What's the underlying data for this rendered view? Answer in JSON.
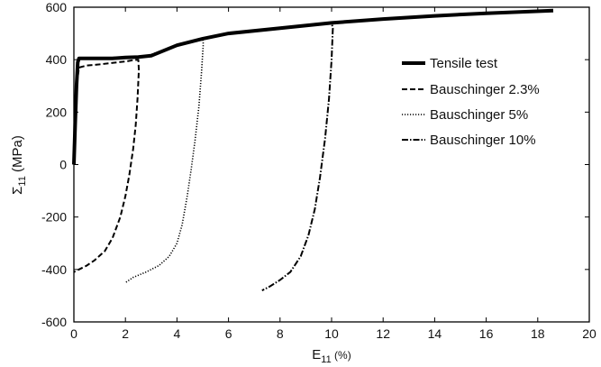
{
  "chart_data": {
    "type": "line",
    "title": "",
    "xlabel": {
      "main": "E",
      "sub": "11",
      "unit": " (%)"
    },
    "ylabel": {
      "main": "Σ",
      "sub": "11",
      "unit": " (MPa)"
    },
    "xlim": [
      0,
      20
    ],
    "ylim": [
      -600,
      600
    ],
    "xticks": [
      0,
      2,
      4,
      6,
      8,
      10,
      12,
      14,
      16,
      18,
      20
    ],
    "yticks": [
      -600,
      -400,
      -200,
      0,
      200,
      400,
      600
    ],
    "grid": false,
    "legend_position": "right",
    "series": [
      {
        "name": "Tensile test",
        "style": "solid",
        "color": "#000000",
        "x": [
          0,
          0.05,
          0.1,
          0.15,
          0.2,
          0.5,
          1,
          1.5,
          2,
          2.5,
          3,
          4,
          5,
          6,
          8,
          10,
          12,
          14,
          16,
          18.6
        ],
        "y": [
          0,
          150,
          300,
          390,
          405,
          405,
          405,
          405,
          408,
          410,
          415,
          455,
          480,
          500,
          520,
          540,
          555,
          567,
          577,
          587
        ]
      },
      {
        "name": "Bauschinger 2.3%",
        "style": "dashed",
        "color": "#000000",
        "x": [
          0,
          0.1,
          0.2,
          0.5,
          1,
          1.5,
          2,
          2.3,
          2.5,
          2.52,
          2.47,
          2.4,
          2.3,
          2.15,
          2.0,
          1.8,
          1.5,
          1.2,
          0.8,
          0.5,
          0.2,
          0.0
        ],
        "y": [
          0,
          300,
          370,
          378,
          382,
          388,
          393,
          398,
          400,
          360,
          250,
          150,
          60,
          -40,
          -120,
          -200,
          -280,
          -330,
          -365,
          -385,
          -400,
          -410
        ]
      },
      {
        "name": "Bauschinger 5%",
        "style": "dotted",
        "color": "#000000",
        "x": [
          2.5,
          3,
          4,
          4.5,
          5,
          5.02,
          4.95,
          4.85,
          4.7,
          4.55,
          4.4,
          4.2,
          4.0,
          3.7,
          3.3,
          2.8,
          2.3,
          2.0
        ],
        "y": [
          410,
          420,
          455,
          468,
          478,
          460,
          350,
          220,
          90,
          -20,
          -120,
          -230,
          -300,
          -350,
          -385,
          -410,
          -430,
          -450
        ]
      },
      {
        "name": "Bauschinger 10%",
        "style": "dashdot",
        "color": "#000000",
        "x": [
          5,
          6,
          7,
          8,
          9,
          10,
          10.05,
          10.0,
          9.9,
          9.75,
          9.55,
          9.35,
          9.1,
          8.8,
          8.4,
          8.0,
          7.6,
          7.3
        ],
        "y": [
          480,
          500,
          510,
          520,
          530,
          540,
          520,
          400,
          250,
          100,
          -50,
          -170,
          -270,
          -350,
          -410,
          -440,
          -465,
          -480
        ]
      }
    ]
  }
}
